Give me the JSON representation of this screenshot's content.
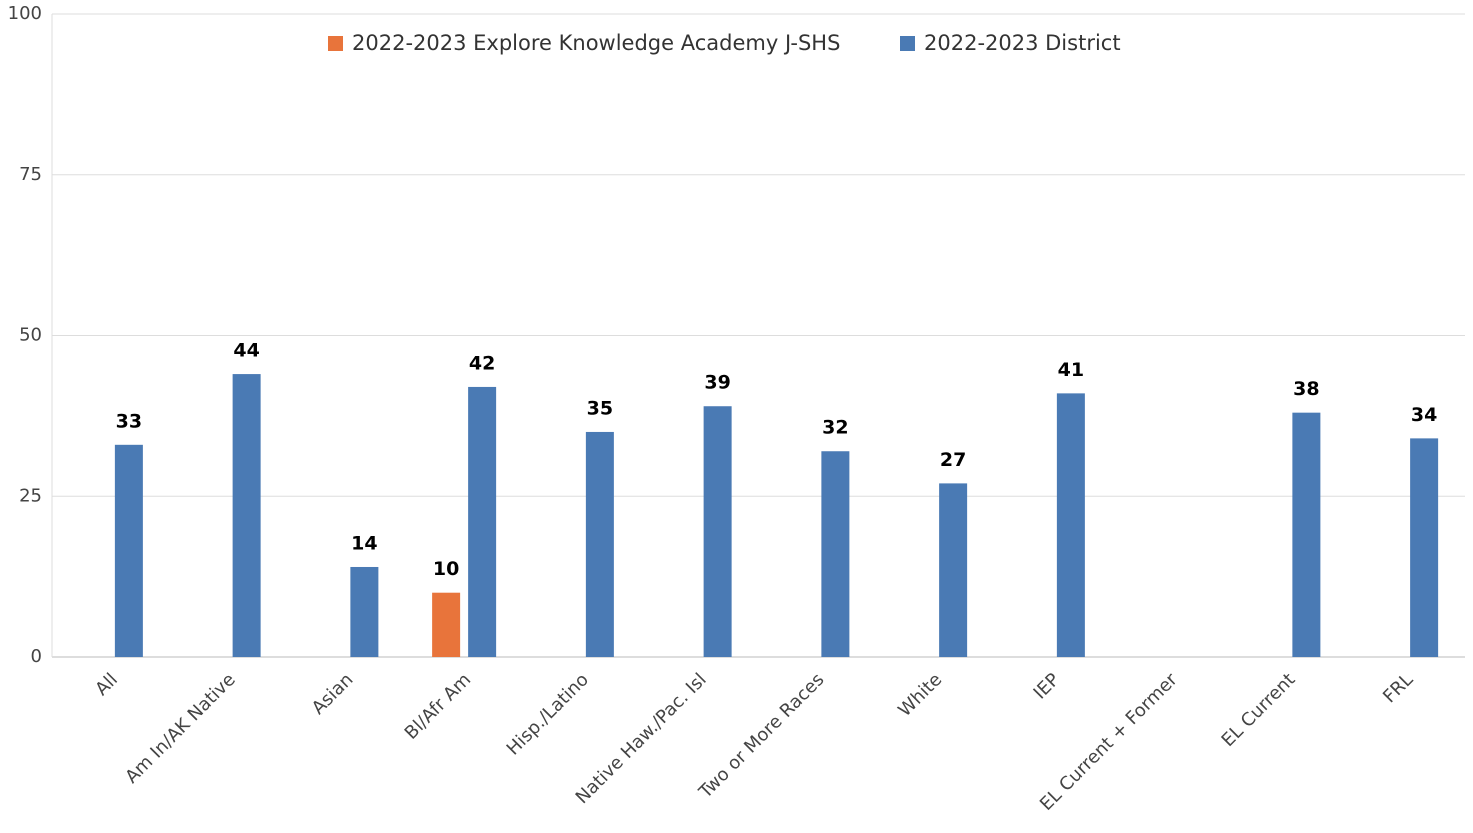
{
  "chart_data": {
    "type": "bar",
    "categories": [
      "All",
      "Am In/AK Native",
      "Asian",
      "Bl/Afr Am",
      "Hisp./Latino",
      "Native Haw./Pac. Isl",
      "Two or More Races",
      "White",
      "IEP",
      "EL Current + Former",
      "EL Current",
      "FRL"
    ],
    "series": [
      {
        "name": "2022-2023 Explore Knowledge Academy J-SHS",
        "color": "#e8743b",
        "values": [
          null,
          null,
          null,
          10,
          null,
          null,
          null,
          null,
          null,
          null,
          null,
          null
        ]
      },
      {
        "name": "2022-2023 District",
        "color": "#4a7ab4",
        "values": [
          33,
          44,
          14,
          42,
          35,
          39,
          32,
          27,
          41,
          null,
          38,
          34
        ]
      }
    ],
    "ylim": [
      0,
      100
    ],
    "yticks": [
      0,
      25,
      50,
      75,
      100
    ],
    "grid": true,
    "legend": "top"
  }
}
